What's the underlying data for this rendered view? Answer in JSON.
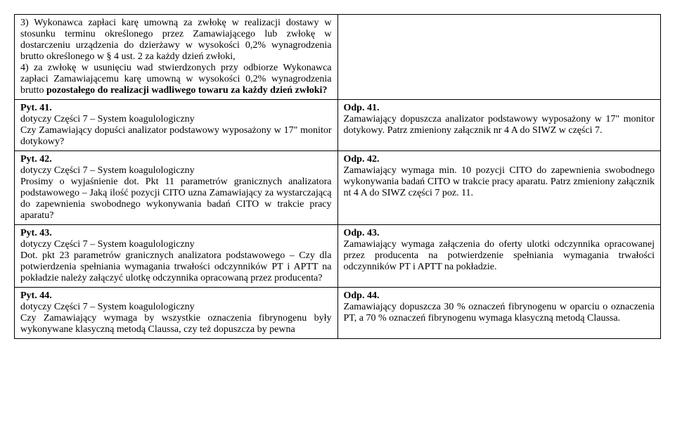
{
  "rows": [
    {
      "left": [
        {
          "text": "3) Wykonawca zapłaci karę umowną za zwłokę w realizacji dostawy w stosunku terminu określonego przez Zamawiającego lub zwłokę w dostarczeniu urządzenia do dzierżawy w wysokości 0,2% wynagrodzenia brutto określonego w § 4 ust. 2 za każdy dzień zwłoki,"
        },
        {
          "text": "4) za zwłokę w usunięciu wad stwierdzonych przy odbiorze Wykonawca zapłaci Zamawiającemu karę umowną w wysokości 0,2% wynagrodzenia brutto ",
          "bold_tail": "pozostałego do realizacji wadliwego towaru za każdy dzień zwłoki?"
        }
      ],
      "right": []
    },
    {
      "left": [
        {
          "bold": "Pyt. 41."
        },
        {
          "text": "dotyczy Części 7 – System koagulologiczny"
        },
        {
          "text": " "
        },
        {
          "text": "Czy Zamawiający dopuści analizator podstawowy wyposażony w 17\" monitor dotykowy?"
        }
      ],
      "right": [
        {
          "bold": "Odp. 41."
        },
        {
          "text": " "
        },
        {
          "text": "Zamawiający dopuszcza analizator podstawowy wyposażony w 17\" monitor dotykowy. ",
          "underlined_tail": "Patrz zmieniony załącznik nr 4 A do SIWZ w części 7."
        }
      ]
    },
    {
      "left": [
        {
          "bold": "Pyt. 42."
        },
        {
          "text": "dotyczy Części 7 – System koagulologiczny"
        },
        {
          "text": " "
        },
        {
          "text": "Prosimy o wyjaśnienie dot. Pkt 11 parametrów granicznych analizatora podstawowego – Jaką ilość pozycji CITO uzna Zamawiający za wystarczającą do zapewnienia swobodnego wykonywania badań CITO w trakcie pracy aparatu?"
        }
      ],
      "right": [
        {
          "bold": "Odp. 42."
        },
        {
          "text": "Zamawiający wymaga min. 10 pozycji CITO do zapewnienia swobodnego wykonywania badań CITO w trakcie pracy aparatu. ",
          "underlined_tail": "Patrz zmieniony załącznik nt 4 A do SIWZ części 7 poz. 11."
        }
      ]
    },
    {
      "left": [
        {
          "bold": "Pyt. 43."
        },
        {
          "text": "dotyczy Części 7 – System koagulologiczny"
        },
        {
          "text": " "
        },
        {
          "text": "Dot. pkt 23 parametrów granicznych analizatora podstawowego – Czy dla potwierdzenia spełniania wymagania trwałości odczynników PT i APTT na pokładzie należy załączyć ulotkę odczynnika opracowaną przez producenta?"
        }
      ],
      "right": [
        {
          "bold": "Odp. 43."
        },
        {
          "text": "Zamawiający wymaga załączenia do oferty ulotki odczynnika opracowanej przez producenta na potwierdzenie spełniania wymagania trwałości odczynników PT i APTT na pokładzie."
        }
      ]
    },
    {
      "left": [
        {
          "bold": "Pyt. 44."
        },
        {
          "text": "dotyczy Części 7 – System koagulologiczny"
        },
        {
          "text": " "
        },
        {
          "text": "Czy Zamawiający wymaga by wszystkie oznaczenia fibrynogenu były wykonywane klasyczną metodą Claussa, czy też dopuszcza by pewna"
        }
      ],
      "right": [
        {
          "bold": "Odp. 44."
        },
        {
          "text": "Zamawiający dopuszcza 30 % oznaczeń fibrynogenu w oparciu o oznaczenia PT, a 70 % oznaczeń fibrynogenu wymaga klasyczną metodą Claussa."
        }
      ]
    }
  ]
}
